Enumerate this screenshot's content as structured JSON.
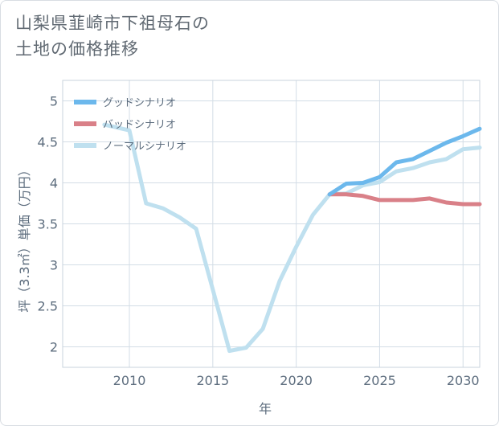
{
  "title_lines": [
    "山梨県韮崎市下祖母石の",
    "土地の価格推移"
  ],
  "chart_data": {
    "type": "line",
    "xlabel": "年",
    "ylabel": "坪（3.3㎡）単価（万円）",
    "xlim": [
      2006,
      2031
    ],
    "ylim": [
      1.75,
      5.25
    ],
    "xticks": [
      2010,
      2015,
      2020,
      2025,
      2030
    ],
    "yticks": [
      2,
      2.5,
      3,
      3.5,
      4,
      4.5,
      5
    ],
    "ytick_labels": [
      "2",
      "2.5",
      "3",
      "3.5",
      "4",
      "4.5",
      "5"
    ],
    "xtick_labels": [
      "2010",
      "2015",
      "2020",
      "2025",
      "2030"
    ],
    "grid": true,
    "legend_position": "top-left",
    "series": [
      {
        "name": "グッドシナリオ",
        "color": "#6cb8ec",
        "x": [
          2022,
          2023,
          2024,
          2025,
          2026,
          2027,
          2028,
          2029,
          2030,
          2031
        ],
        "y": [
          3.86,
          3.99,
          4.0,
          4.07,
          4.25,
          4.29,
          4.39,
          4.49,
          4.57,
          4.66
        ]
      },
      {
        "name": "バッドシナリオ",
        "color": "#d98088",
        "x": [
          2022,
          2023,
          2024,
          2025,
          2026,
          2027,
          2028,
          2029,
          2030,
          2031
        ],
        "y": [
          3.86,
          3.86,
          3.84,
          3.79,
          3.79,
          3.79,
          3.81,
          3.76,
          3.74,
          3.74
        ]
      },
      {
        "name": "ノーマルシナリオ",
        "color": "#bfe0ef",
        "x": [
          2008.5,
          2010,
          2011,
          2012,
          2013,
          2014,
          2015,
          2016,
          2017,
          2018,
          2019,
          2020,
          2021,
          2022,
          2023,
          2024,
          2025,
          2026,
          2027,
          2028,
          2029,
          2030,
          2031
        ],
        "y": [
          4.71,
          4.64,
          3.75,
          3.69,
          3.58,
          3.44,
          2.7,
          1.95,
          1.99,
          2.22,
          2.8,
          3.22,
          3.61,
          3.86,
          3.87,
          3.97,
          4.01,
          4.14,
          4.18,
          4.25,
          4.29,
          4.41,
          4.43
        ]
      }
    ]
  }
}
